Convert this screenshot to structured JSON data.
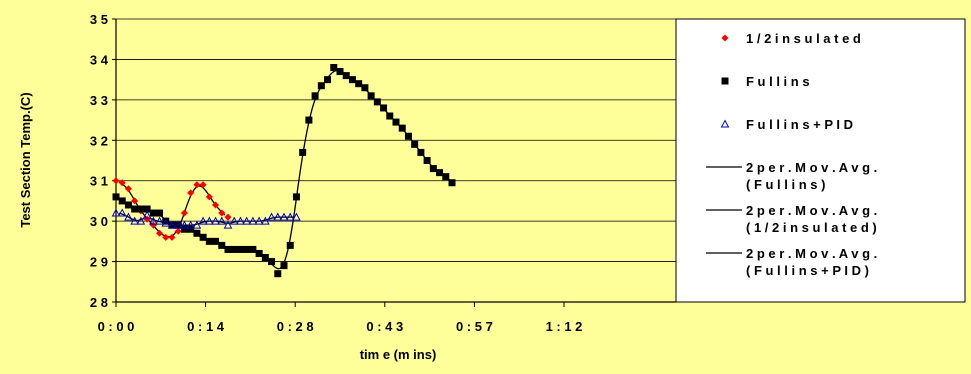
{
  "chart_data": {
    "type": "scatter",
    "title": "",
    "xlabel": "tim e  (m ins)",
    "ylabel": "Test Section Temp.(C)",
    "xlim": [
      0,
      90
    ],
    "ylim": [
      28,
      35
    ],
    "x_ticks": [
      {
        "value": 0,
        "label": "0 : 0 0"
      },
      {
        "value": 14.4,
        "label": "0 : 1 4"
      },
      {
        "value": 28.8,
        "label": "0 : 2 8"
      },
      {
        "value": 43.2,
        "label": "0 : 4 3"
      },
      {
        "value": 57.6,
        "label": "0 : 5 7"
      },
      {
        "value": 72,
        "label": "1 : 1 2"
      }
    ],
    "y_ticks": [
      {
        "value": 28,
        "label": "2 8"
      },
      {
        "value": 29,
        "label": "2 9"
      },
      {
        "value": 30,
        "label": "3 0"
      },
      {
        "value": 31,
        "label": "3 1"
      },
      {
        "value": 32,
        "label": "3 2"
      },
      {
        "value": 33,
        "label": "3 3"
      },
      {
        "value": 34,
        "label": "3 4"
      },
      {
        "value": 35,
        "label": "3 5"
      }
    ],
    "grid": "horizontal",
    "legend_position": "right",
    "series": [
      {
        "name": "1 / 2  i n s u l a t e d",
        "marker": "diamond",
        "color": "#FF0000",
        "x": [
          0,
          1,
          2,
          3,
          4,
          5,
          6,
          7,
          8,
          9,
          10,
          11,
          12,
          13,
          14,
          15,
          16,
          17,
          18
        ],
        "y": [
          31.0,
          30.95,
          30.8,
          30.5,
          30.25,
          30.05,
          29.9,
          29.7,
          29.6,
          29.6,
          29.75,
          30.2,
          30.7,
          30.9,
          30.9,
          30.6,
          30.4,
          30.2,
          30.1
        ]
      },
      {
        "name": "F u l l i n s",
        "marker": "square",
        "color": "#000000",
        "x": [
          0,
          1,
          2,
          3,
          4,
          5,
          6,
          7,
          8,
          9,
          10,
          11,
          12,
          13,
          14,
          15,
          16,
          17,
          18,
          19,
          20,
          21,
          22,
          23,
          24,
          25,
          26,
          27,
          28,
          29,
          30,
          31,
          32,
          33,
          34,
          35,
          36,
          37,
          38,
          39,
          40,
          41,
          42,
          43,
          44,
          45,
          46,
          47,
          48,
          49,
          50,
          51,
          52,
          53,
          54
        ],
        "y": [
          30.6,
          30.5,
          30.4,
          30.3,
          30.3,
          30.3,
          30.2,
          30.2,
          30.0,
          29.9,
          29.9,
          29.8,
          29.8,
          29.7,
          29.6,
          29.5,
          29.5,
          29.4,
          29.3,
          29.3,
          29.3,
          29.3,
          29.3,
          29.2,
          29.1,
          29.0,
          28.7,
          28.9,
          29.4,
          30.6,
          31.7,
          32.5,
          33.1,
          33.35,
          33.5,
          33.8,
          33.7,
          33.6,
          33.5,
          33.4,
          33.3,
          33.1,
          32.95,
          32.8,
          32.6,
          32.45,
          32.3,
          32.1,
          31.9,
          31.7,
          31.5,
          31.3,
          31.2,
          31.1,
          30.95
        ]
      },
      {
        "name": "F u l l i n s  +  P I D",
        "marker": "triangle",
        "color": "#0000CC",
        "x": [
          0,
          1,
          2,
          3,
          4,
          5,
          6,
          7,
          8,
          9,
          10,
          11,
          12,
          13,
          14,
          15,
          16,
          17,
          18,
          19,
          20,
          21,
          22,
          23,
          24,
          25,
          26,
          27,
          28,
          29
        ],
        "y": [
          30.2,
          30.2,
          30.1,
          30.0,
          30.0,
          30.15,
          30.0,
          30.0,
          29.95,
          29.9,
          29.9,
          29.9,
          29.9,
          29.9,
          30.0,
          30.0,
          30.0,
          30.0,
          29.9,
          30.0,
          30.0,
          30.0,
          30.0,
          30.0,
          30.0,
          30.1,
          30.1,
          30.1,
          30.1,
          30.1
        ]
      },
      {
        "name": "2  p e r .  M o v .  A v g .  ( F u l l i n s )",
        "line": true,
        "color": "#000000",
        "of": "F u l l i n s"
      },
      {
        "name": "2  p e r .  M o v .  A v g .  ( 1 / 2  i n s u l a t e d )",
        "line": true,
        "color": "#000000",
        "of": "1 / 2  i n s u l a t e d"
      },
      {
        "name": "2  p e r .  M o v .  A v g .  ( F u l l i n s  +  P I D )",
        "line": true,
        "color": "#000000",
        "of": "F u l l i n s  +  P I D"
      }
    ],
    "legend_entries": [
      {
        "label": "1 / 2  i n s u l a t e d",
        "kind": "diamond"
      },
      {
        "label": "F u l l i n s",
        "kind": "square"
      },
      {
        "label": "F u l l i n s  +  P I D",
        "kind": "triangle"
      },
      {
        "label_lines": [
          "2  p e r .  M o v .  A v g .",
          "( F u l l i n s )"
        ],
        "kind": "line"
      },
      {
        "label_lines": [
          "2  p e r .  M o v .  A v g .",
          "( 1 / 2  i n s u l a t e d )"
        ],
        "kind": "line"
      },
      {
        "label_lines": [
          "2  p e r .  M o v .  A v g .",
          "( F u l l i n s  +  P I D )"
        ],
        "kind": "line"
      }
    ]
  }
}
